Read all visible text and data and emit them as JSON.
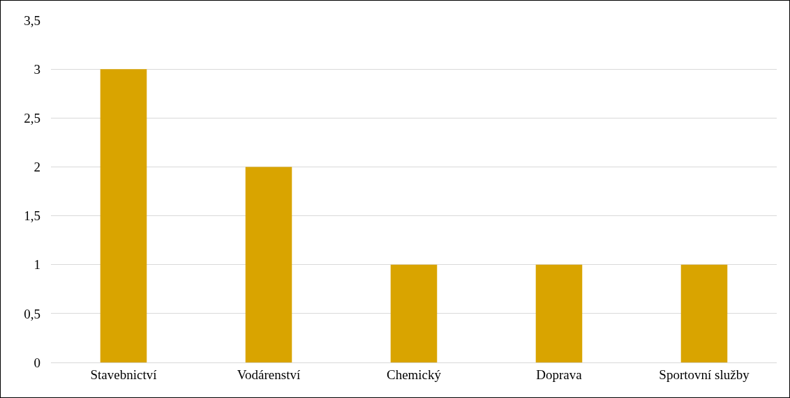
{
  "chart_data": {
    "type": "bar",
    "categories": [
      "Stavebnictví",
      "Vodárenství",
      "Chemický",
      "Doprava",
      "Sportovní služby"
    ],
    "values": [
      3,
      2,
      1,
      1,
      1
    ],
    "color": "#d9a400",
    "ylim": [
      0,
      3.5
    ],
    "yticks": [
      0,
      {
        "value": 0.5,
        "label": "0,5"
      },
      1,
      {
        "value": 1.5,
        "label": "1,5"
      },
      2,
      {
        "value": 2.5,
        "label": "2,5"
      },
      3,
      {
        "value": 3.5,
        "label": "3,5"
      }
    ],
    "grid": "y",
    "legend": false
  }
}
